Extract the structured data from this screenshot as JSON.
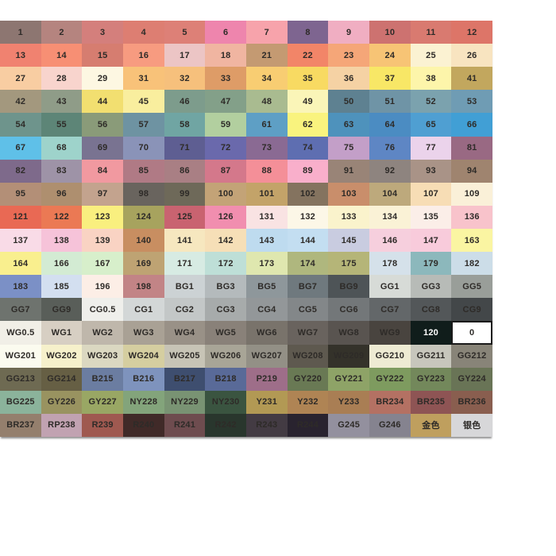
{
  "chart_data": {
    "type": "table",
    "description_in_pixels_only": "color swatch grid, 18 rows x 12 columns, each cell shows a marker color code on its swatch color",
    "columns": 12,
    "rows": [
      [
        {
          "label": "1",
          "color": "#8d7671"
        },
        {
          "label": "2",
          "color": "#b5847f"
        },
        {
          "label": "3",
          "color": "#d47f7c"
        },
        {
          "label": "4",
          "color": "#dd7e72"
        },
        {
          "label": "5",
          "color": "#dd8077"
        },
        {
          "label": "6",
          "color": "#ee85ad"
        },
        {
          "label": "7",
          "color": "#f7a3ab"
        },
        {
          "label": "8",
          "color": "#7e6590"
        },
        {
          "label": "9",
          "color": "#f0aec2"
        },
        {
          "label": "10",
          "color": "#cd7270"
        },
        {
          "label": "11",
          "color": "#d97a70"
        },
        {
          "label": "12",
          "color": "#dd7568"
        }
      ],
      [
        {
          "label": "13",
          "color": "#f08270"
        },
        {
          "label": "14",
          "color": "#f78f74"
        },
        {
          "label": "15",
          "color": "#d67d70"
        },
        {
          "label": "16",
          "color": "#f79b80"
        },
        {
          "label": "17",
          "color": "#ecc5c5"
        },
        {
          "label": "18",
          "color": "#f0b5a1"
        },
        {
          "label": "21",
          "color": "#c49a72"
        },
        {
          "label": "22",
          "color": "#f28568"
        },
        {
          "label": "23",
          "color": "#f5a678"
        },
        {
          "label": "24",
          "color": "#f7c475"
        },
        {
          "label": "25",
          "color": "#fbf2d2"
        },
        {
          "label": "26",
          "color": "#f8e4c0"
        }
      ],
      [
        {
          "label": "27",
          "color": "#f8cda2"
        },
        {
          "label": "28",
          "color": "#f8d4cd"
        },
        {
          "label": "29",
          "color": "#fdf7e2"
        },
        {
          "label": "31",
          "color": "#f8c279"
        },
        {
          "label": "32",
          "color": "#f6c07c"
        },
        {
          "label": "33",
          "color": "#de9c67"
        },
        {
          "label": "34",
          "color": "#f8cd72"
        },
        {
          "label": "35",
          "color": "#f8da62"
        },
        {
          "label": "36",
          "color": "#f5d2a4"
        },
        {
          "label": "37",
          "color": "#f8e766"
        },
        {
          "label": "38",
          "color": "#fdf5aa"
        },
        {
          "label": "41",
          "color": "#c2a75e"
        }
      ],
      [
        {
          "label": "42",
          "color": "#a3987e"
        },
        {
          "label": "43",
          "color": "#8f9c88"
        },
        {
          "label": "44",
          "color": "#f2df70"
        },
        {
          "label": "45",
          "color": "#f9ee9e"
        },
        {
          "label": "46",
          "color": "#7d9c8c"
        },
        {
          "label": "47",
          "color": "#83a089"
        },
        {
          "label": "48",
          "color": "#a9bb90"
        },
        {
          "label": "49",
          "color": "#faf5b8"
        },
        {
          "label": "50",
          "color": "#5e8191"
        },
        {
          "label": "51",
          "color": "#6f94a6"
        },
        {
          "label": "52",
          "color": "#7ba2ae"
        },
        {
          "label": "53",
          "color": "#6f9cb4"
        }
      ],
      [
        {
          "label": "54",
          "color": "#6e948c"
        },
        {
          "label": "55",
          "color": "#5d8577"
        },
        {
          "label": "56",
          "color": "#8a9b79"
        },
        {
          "label": "57",
          "color": "#6e93a2"
        },
        {
          "label": "58",
          "color": "#70a5a3"
        },
        {
          "label": "59",
          "color": "#b2cf9f"
        },
        {
          "label": "61",
          "color": "#5e9fc5"
        },
        {
          "label": "62",
          "color": "#f9f37e"
        },
        {
          "label": "63",
          "color": "#4e92bc"
        },
        {
          "label": "64",
          "color": "#4b8cc2"
        },
        {
          "label": "65",
          "color": "#4f9fd2"
        },
        {
          "label": "66",
          "color": "#419fd5"
        }
      ],
      [
        {
          "label": "67",
          "color": "#5fc0e8"
        },
        {
          "label": "68",
          "color": "#9ed3cb"
        },
        {
          "label": "69",
          "color": "#797391"
        },
        {
          "label": "70",
          "color": "#8a93b8"
        },
        {
          "label": "71",
          "color": "#5e5e92"
        },
        {
          "label": "72",
          "color": "#6a69ac"
        },
        {
          "label": "73",
          "color": "#8a6a93"
        },
        {
          "label": "74",
          "color": "#5e6eb1"
        },
        {
          "label": "75",
          "color": "#c39fc8"
        },
        {
          "label": "76",
          "color": "#5e86c4"
        },
        {
          "label": "77",
          "color": "#ebd3eb"
        },
        {
          "label": "81",
          "color": "#996983"
        }
      ],
      [
        {
          "label": "82",
          "color": "#7e6a8b"
        },
        {
          "label": "83",
          "color": "#9e93a7"
        },
        {
          "label": "84",
          "color": "#f199a0"
        },
        {
          "label": "85",
          "color": "#b07a85"
        },
        {
          "label": "86",
          "color": "#a97f84"
        },
        {
          "label": "87",
          "color": "#d4788b"
        },
        {
          "label": "88",
          "color": "#f48f98"
        },
        {
          "label": "89",
          "color": "#f9afcb"
        },
        {
          "label": "91",
          "color": "#998477"
        },
        {
          "label": "92",
          "color": "#8e847f"
        },
        {
          "label": "93",
          "color": "#a99387"
        },
        {
          "label": "94",
          "color": "#9f846f"
        }
      ],
      [
        {
          "label": "95",
          "color": "#b38f77"
        },
        {
          "label": "96",
          "color": "#ae8f6f"
        },
        {
          "label": "97",
          "color": "#c3a38e"
        },
        {
          "label": "98",
          "color": "#69645e"
        },
        {
          "label": "99",
          "color": "#6e6959"
        },
        {
          "label": "100",
          "color": "#c3a377"
        },
        {
          "label": "101",
          "color": "#c3a369"
        },
        {
          "label": "102",
          "color": "#84735f"
        },
        {
          "label": "103",
          "color": "#c98e6b"
        },
        {
          "label": "104",
          "color": "#bda97c"
        },
        {
          "label": "107",
          "color": "#f7ddb5"
        },
        {
          "label": "109",
          "color": "#faf0d8"
        }
      ],
      [
        {
          "label": "121",
          "color": "#e96954"
        },
        {
          "label": "122",
          "color": "#eb7954"
        },
        {
          "label": "123",
          "color": "#f9ef7f"
        },
        {
          "label": "124",
          "color": "#a7a35e"
        },
        {
          "label": "125",
          "color": "#c96370"
        },
        {
          "label": "126",
          "color": "#f18eaf"
        },
        {
          "label": "131",
          "color": "#f9e3e3"
        },
        {
          "label": "132",
          "color": "#fcf7e7"
        },
        {
          "label": "133",
          "color": "#faf3cc"
        },
        {
          "label": "134",
          "color": "#faf2d6"
        },
        {
          "label": "135",
          "color": "#fbeee8"
        },
        {
          "label": "136",
          "color": "#f8c3cb"
        }
      ],
      [
        {
          "label": "137",
          "color": "#f9dbe7"
        },
        {
          "label": "138",
          "color": "#f6c3d9"
        },
        {
          "label": "139",
          "color": "#f9d3c3"
        },
        {
          "label": "140",
          "color": "#c88e61"
        },
        {
          "label": "141",
          "color": "#f6e7bf"
        },
        {
          "label": "142",
          "color": "#f6dfb7"
        },
        {
          "label": "143",
          "color": "#bedbef"
        },
        {
          "label": "144",
          "color": "#c3def1"
        },
        {
          "label": "145",
          "color": "#c9cce0"
        },
        {
          "label": "146",
          "color": "#f6cfdd"
        },
        {
          "label": "147",
          "color": "#f8cbdb"
        },
        {
          "label": "163",
          "color": "#faf5a2"
        }
      ],
      [
        {
          "label": "164",
          "color": "#f9ef8e"
        },
        {
          "label": "166",
          "color": "#d3ebd3"
        },
        {
          "label": "167",
          "color": "#d7efcb"
        },
        {
          "label": "169",
          "color": "#bea373"
        },
        {
          "label": "171",
          "color": "#d7ebe3"
        },
        {
          "label": "172",
          "color": "#bedfd7"
        },
        {
          "label": "173",
          "color": "#dfe7af"
        },
        {
          "label": "174",
          "color": "#afb77e"
        },
        {
          "label": "175",
          "color": "#b5b578"
        },
        {
          "label": "178",
          "color": "#d5e1ea"
        },
        {
          "label": "179",
          "color": "#8cb8bc"
        },
        {
          "label": "182",
          "color": "#ccdde8"
        }
      ],
      [
        {
          "label": "183",
          "color": "#7b90c6"
        },
        {
          "label": "185",
          "color": "#d3dff0"
        },
        {
          "label": "196",
          "color": "#fceee6"
        },
        {
          "label": "198",
          "color": "#c28486"
        },
        {
          "label": "BG1",
          "color": "#ccd2d4"
        },
        {
          "label": "BG3",
          "color": "#b4babc"
        },
        {
          "label": "BG5",
          "color": "#8e979b"
        },
        {
          "label": "BG7",
          "color": "#6f797e"
        },
        {
          "label": "BG9",
          "color": "#4e5457"
        },
        {
          "label": "GG1",
          "color": "#d7dbd7"
        },
        {
          "label": "GG3",
          "color": "#b7bbb7"
        },
        {
          "label": "GG5",
          "color": "#999e99"
        }
      ],
      [
        {
          "label": "GG7",
          "color": "#6e736e"
        },
        {
          "label": "GG9",
          "color": "#595e59"
        },
        {
          "label": "CG0.5",
          "color": "#efefeb"
        },
        {
          "label": "CG1",
          "color": "#d3d7d7"
        },
        {
          "label": "CG2",
          "color": "#c3c7c7"
        },
        {
          "label": "CG3",
          "color": "#a7abab"
        },
        {
          "label": "CG4",
          "color": "#939799"
        },
        {
          "label": "CG5",
          "color": "#838789"
        },
        {
          "label": "CG6",
          "color": "#737779"
        },
        {
          "label": "CG7",
          "color": "#636769"
        },
        {
          "label": "CG8",
          "color": "#535759"
        },
        {
          "label": "CG9",
          "color": "#434749"
        }
      ],
      [
        {
          "label": "WG0.5",
          "color": "#f1efe7"
        },
        {
          "label": "WG1",
          "color": "#d7cfc3"
        },
        {
          "label": "WG2",
          "color": "#bfb7ab"
        },
        {
          "label": "WG3",
          "color": "#a9a195"
        },
        {
          "label": "WG4",
          "color": "#999187"
        },
        {
          "label": "WG5",
          "color": "#898179"
        },
        {
          "label": "WG6",
          "color": "#79736b"
        },
        {
          "label": "WG7",
          "color": "#69635e"
        },
        {
          "label": "WG8",
          "color": "#595450"
        },
        {
          "label": "WG9",
          "color": "#49443f"
        },
        {
          "label": "120",
          "color": "#101d1b",
          "fg": "#ffffff"
        },
        {
          "label": "0",
          "color": "#ffffff",
          "border": "#1a1a1a"
        }
      ],
      [
        {
          "label": "WG201",
          "color": "#fbfbef"
        },
        {
          "label": "WG202",
          "color": "#f6f1cb"
        },
        {
          "label": "WG203",
          "color": "#dbd8c1"
        },
        {
          "label": "WG204",
          "color": "#d5cea0"
        },
        {
          "label": "WG205",
          "color": "#c7c4b6"
        },
        {
          "label": "WG206",
          "color": "#a8a597"
        },
        {
          "label": "WG207",
          "color": "#939086"
        },
        {
          "label": "WG208",
          "color": "#5e594f"
        },
        {
          "label": "WG209",
          "color": "#34322a"
        },
        {
          "label": "GG210",
          "color": "#eeebd3"
        },
        {
          "label": "GG211",
          "color": "#c7c6bc"
        },
        {
          "label": "GG212",
          "color": "#888478"
        }
      ],
      [
        {
          "label": "GG213",
          "color": "#6e6a52"
        },
        {
          "label": "GG214",
          "color": "#665f44"
        },
        {
          "label": "B215",
          "color": "#6b7da1"
        },
        {
          "label": "B216",
          "color": "#7e93bd"
        },
        {
          "label": "B217",
          "color": "#3e4e6f"
        },
        {
          "label": "B218",
          "color": "#596a98"
        },
        {
          "label": "P219",
          "color": "#9e6e89"
        },
        {
          "label": "GY220",
          "color": "#697954"
        },
        {
          "label": "GY221",
          "color": "#8ea367"
        },
        {
          "label": "GY222",
          "color": "#7e9b5f"
        },
        {
          "label": "GY223",
          "color": "#73885b"
        },
        {
          "label": "GY224",
          "color": "#697456"
        }
      ],
      [
        {
          "label": "BG225",
          "color": "#8bb39b"
        },
        {
          "label": "GY226",
          "color": "#999360"
        },
        {
          "label": "GY227",
          "color": "#99a764"
        },
        {
          "label": "NY228",
          "color": "#83a47b"
        },
        {
          "label": "NY229",
          "color": "#799373"
        },
        {
          "label": "NY230",
          "color": "#3a5440"
        },
        {
          "label": "Y231",
          "color": "#b29954"
        },
        {
          "label": "Y232",
          "color": "#af8454"
        },
        {
          "label": "Y233",
          "color": "#a97e54"
        },
        {
          "label": "BR234",
          "color": "#b47163"
        },
        {
          "label": "BR235",
          "color": "#8e5454"
        },
        {
          "label": "BR236",
          "color": "#895e4f"
        }
      ],
      [
        {
          "label": "BR237",
          "color": "#947f6d"
        },
        {
          "label": "RP238",
          "color": "#c1a2b1"
        },
        {
          "label": "R239",
          "color": "#9f5950"
        },
        {
          "label": "R240",
          "color": "#402a28"
        },
        {
          "label": "R241",
          "color": "#6e4c4f"
        },
        {
          "label": "R242",
          "color": "#29362d"
        },
        {
          "label": "R243",
          "color": "#433b43"
        },
        {
          "label": "R244",
          "color": "#29232f"
        },
        {
          "label": "G245",
          "color": "#93909e"
        },
        {
          "label": "G246",
          "color": "#85838f"
        },
        {
          "label": "金色",
          "color": "#bf9f5e"
        },
        {
          "label": "银色",
          "color": "#d7d7d9"
        }
      ]
    ],
    "default_text_color": "#2e2b28",
    "legend_position": "none",
    "grid_lines": false
  }
}
